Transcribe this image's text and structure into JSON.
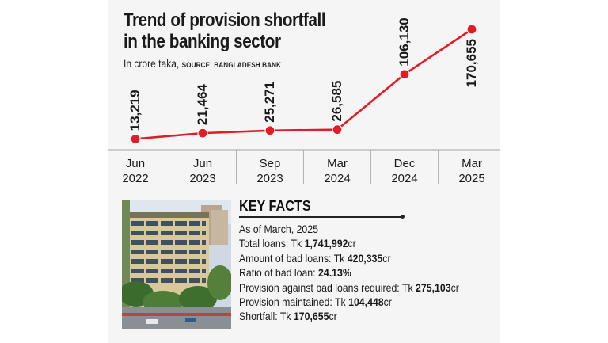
{
  "title_line1": "Trend of provision shortfall",
  "title_line2": "in the banking sector",
  "subtitle": "In crore taka,",
  "source": "SOURCE: BANGLADESH BANK",
  "chart_data": {
    "type": "line",
    "title": "Trend of provision shortfall in the banking sector",
    "ylabel": "In crore taka",
    "categories": [
      [
        "Jun",
        "2022"
      ],
      [
        "Jun",
        "2023"
      ],
      [
        "Sep",
        "2023"
      ],
      [
        "Mar",
        "2024"
      ],
      [
        "Dec",
        "2024"
      ],
      [
        "Mar",
        "2025"
      ]
    ],
    "values": [
      13219,
      21464,
      25271,
      26585,
      106130,
      170655
    ],
    "value_labels": [
      "13,219",
      "21,464",
      "25,271",
      "26,585",
      "106,130",
      "170,655"
    ],
    "ylim": [
      0,
      170655
    ],
    "color": "#e31b23"
  },
  "key_facts": {
    "heading": "KEY FACTS",
    "as_of": "As of March, 2025",
    "items": [
      {
        "label": "Total loans: Tk ",
        "value": "1,741,992",
        "unit": "cr"
      },
      {
        "label": "Amount of bad loans: Tk ",
        "value": "420,335",
        "unit": "cr"
      },
      {
        "label": "Ratio of bad loan: ",
        "value": "24.13%",
        "unit": ""
      },
      {
        "label": "Provision against bad loans required: Tk ",
        "value": "275,103",
        "unit": "cr"
      },
      {
        "label": "Provision maintained: Tk ",
        "value": "104,448",
        "unit": "cr"
      },
      {
        "label": "Shortfall: Tk ",
        "value": "170,655",
        "unit": "cr"
      }
    ]
  },
  "photo": {
    "icon": "bank-building-photo"
  }
}
